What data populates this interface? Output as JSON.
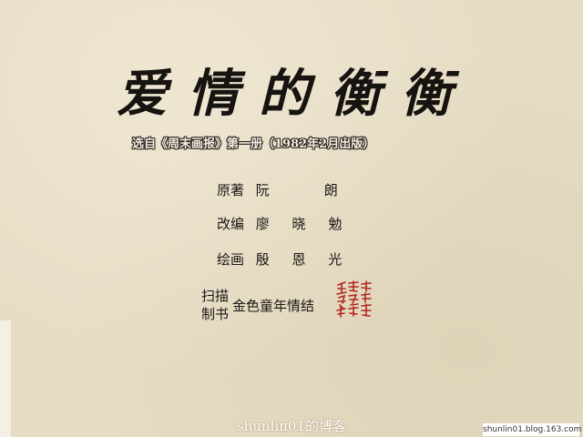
{
  "title": "爱情的衡衡",
  "subtitle": "选自《周末画报》第一册（1982年2月出版）",
  "credits": [
    {
      "role": "原著",
      "name": "阮　　朗"
    },
    {
      "role": "改编",
      "name": "廖 晓 勉"
    },
    {
      "role": "绘画",
      "name": "殷 恩 光"
    }
  ],
  "scan": {
    "label_line1": "扫描",
    "label_line2": "制书",
    "group": "金色童年情结"
  },
  "seal": {
    "text": "金色童年情结",
    "color": "#b3261e"
  },
  "footer": {
    "blog_name": "shunlin01的博客",
    "watermark": "shunlin01.blog.163.com"
  }
}
